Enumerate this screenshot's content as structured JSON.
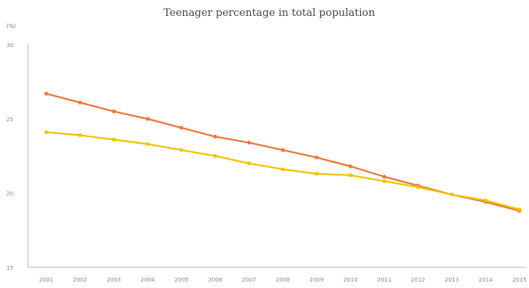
{
  "chart_data": {
    "type": "line",
    "title": "Teenager percentage in total population",
    "y_unit": "(%)",
    "xlabel": "",
    "ylabel": "",
    "ylim": [
      15,
      30
    ],
    "yticks": [
      15,
      20,
      25,
      30
    ],
    "grid": false,
    "legend": "none",
    "categories": [
      "2001",
      "2002",
      "2003",
      "2004",
      "2005",
      "2006",
      "2007",
      "2008",
      "2009",
      "2010",
      "2011",
      "2012",
      "2013",
      "2014",
      "2015"
    ],
    "series": [
      {
        "color": "#E8793C",
        "values": [
          26.7,
          26.1,
          25.5,
          25.0,
          24.4,
          23.8,
          23.4,
          22.9,
          22.4,
          21.8,
          21.1,
          20.5,
          19.9,
          19.4,
          18.8
        ]
      },
      {
        "color": "#F2C200",
        "values": [
          24.1,
          23.9,
          23.6,
          23.3,
          22.9,
          22.5,
          22.0,
          21.6,
          21.3,
          21.2,
          20.8,
          20.4,
          19.9,
          19.5,
          18.9
        ]
      }
    ]
  }
}
